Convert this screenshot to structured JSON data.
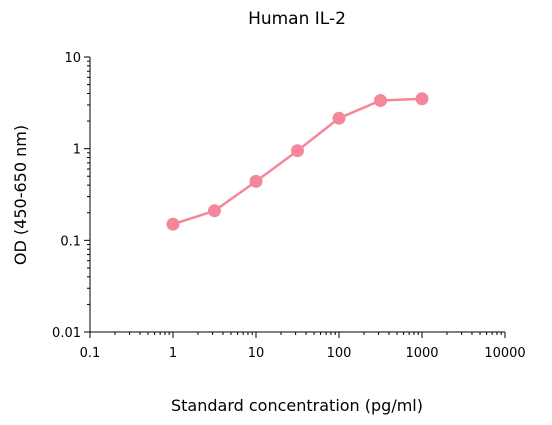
{
  "chart_data": {
    "type": "line",
    "title": "Human IL-2",
    "xlabel": "Standard concentration (pg/ml)",
    "ylabel": "OD (450-650 nm)",
    "x_scale": "log",
    "y_scale": "log",
    "xlim": [
      0.1,
      10000
    ],
    "ylim": [
      0.01,
      10
    ],
    "x_ticks": [
      "0.1",
      "1",
      "10",
      "100",
      "1000",
      "10000"
    ],
    "y_ticks": [
      "0.01",
      "0.1",
      "1",
      "10"
    ],
    "grid": false,
    "series": [
      {
        "color": "#f4879c",
        "x": [
          1,
          3.16,
          10,
          31.6,
          100,
          316,
          1000
        ],
        "y": [
          0.15,
          0.21,
          0.44,
          0.95,
          2.15,
          3.35,
          3.5
        ]
      }
    ]
  }
}
